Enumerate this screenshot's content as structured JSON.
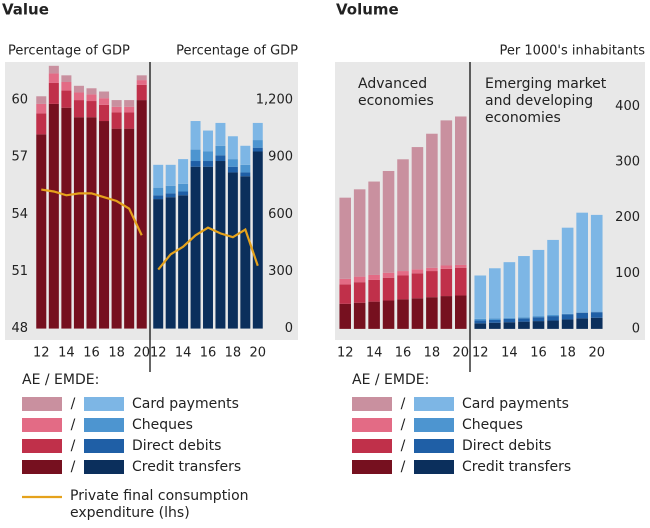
{
  "chart_data": [
    {
      "type": "stacked_bar",
      "title": "Value",
      "ylabel": "Percentage of GDP",
      "y2label": "Percentage of GDP",
      "categories": [
        "12",
        null,
        "14",
        null,
        "16",
        null,
        "18",
        null,
        "20"
      ],
      "ylim": [
        47.4,
        62
      ],
      "yticks": [
        48,
        51,
        54,
        57,
        60
      ],
      "y2lim": [
        -60,
        1400
      ],
      "y2ticks": [
        0,
        300,
        600,
        900,
        {
          "value": 1200,
          "label": "1,200"
        }
      ],
      "legend_title": "AE / EMDE:",
      "legend_separator": "/",
      "series": [
        {
          "name": "Credit transfers",
          "axis": "y2",
          "colors": [
            "#76101f",
            "#0b2f5c"
          ],
          "values": [
            [
              1020,
              1180,
              1160,
              1110,
              1110,
              1090,
              1050,
              1050,
              1200
            ],
            [
              680,
              690,
              700,
              850,
              850,
              880,
              820,
              800,
              930
            ]
          ]
        },
        {
          "name": "Direct debits",
          "axis": "y2",
          "colors": [
            "#c0304a",
            "#1f5fa6"
          ],
          "values": [
            [
              110,
              110,
              90,
              90,
              85,
              85,
              85,
              85,
              80
            ],
            [
              20,
              20,
              20,
              30,
              30,
              30,
              30,
              20,
              20
            ]
          ]
        },
        {
          "name": "Cheques",
          "axis": "y2",
          "colors": [
            "#e36b85",
            "#4d95d0"
          ],
          "values": [
            [
              50,
              50,
              45,
              40,
              35,
              35,
              30,
              30,
              25
            ],
            [
              40,
              40,
              40,
              60,
              50,
              50,
              40,
              40,
              40
            ]
          ]
        },
        {
          "name": "Card payments",
          "axis": "y2",
          "colors": [
            "#c9909f",
            "#7db6e5"
          ],
          "values": [
            [
              40,
              40,
              35,
              35,
              32,
              35,
              35,
              35,
              25
            ],
            [
              120,
              110,
              130,
              150,
              110,
              120,
              120,
              100,
              90
            ]
          ]
        },
        {
          "name": "Private final consumption expenditure (lhs)",
          "type": "line",
          "axis": "y",
          "color": "#e5a21c",
          "values": [
            [
              55.3,
              55.2,
              55.0,
              55.1,
              55.1,
              54.9,
              54.7,
              54.3,
              52.9
            ],
            [
              51.1,
              51.9,
              52.3,
              52.9,
              53.3,
              53.0,
              52.8,
              53.2,
              51.3
            ]
          ]
        }
      ]
    },
    {
      "type": "stacked_bar",
      "title": "Volume",
      "y2label": "Per 1000's inhabitants",
      "annotations": [
        "Advanced economies",
        "Emerging market and developing economies"
      ],
      "categories": [
        "12",
        null,
        "14",
        null,
        "16",
        null,
        "18",
        null,
        "20"
      ],
      "y2lim": [
        -20,
        480
      ],
      "y2ticks": [
        0,
        100,
        200,
        300,
        400
      ],
      "legend_title": "AE / EMDE:",
      "legend_separator": "/",
      "series": [
        {
          "name": "Credit transfers",
          "axis": "y2",
          "colors": [
            "#76101f",
            "#0b2f5c"
          ],
          "values": [
            [
              45,
              47,
              49,
              51,
              53,
              55,
              57,
              59,
              60
            ],
            [
              10,
              11,
              12,
              13,
              14,
              15,
              17,
              19,
              20
            ]
          ]
        },
        {
          "name": "Direct debits",
          "axis": "y2",
          "colors": [
            "#c0304a",
            "#1f5fa6"
          ],
          "values": [
            [
              35,
              37,
              39,
              41,
              43,
              45,
              47,
              49,
              50
            ],
            [
              5,
              5,
              6,
              6,
              7,
              8,
              9,
              10,
              10
            ]
          ]
        },
        {
          "name": "Cheques",
          "axis": "y2",
          "colors": [
            "#e36b85",
            "#4d95d0"
          ],
          "values": [
            [
              10,
              10,
              9,
              9,
              8,
              7,
              6,
              6,
              5
            ],
            [
              3,
              3,
              2,
              2,
              2,
              2,
              1,
              1,
              1
            ]
          ]
        },
        {
          "name": "Card payments",
          "axis": "y2",
          "colors": [
            "#c9909f",
            "#7db6e5"
          ],
          "values": [
            [
              146,
              157,
              168,
              183,
              201,
              220,
              241,
              261,
              267
            ],
            [
              78,
              90,
              100,
              110,
              119,
              135,
              155,
              179,
              174
            ]
          ]
        }
      ]
    }
  ]
}
